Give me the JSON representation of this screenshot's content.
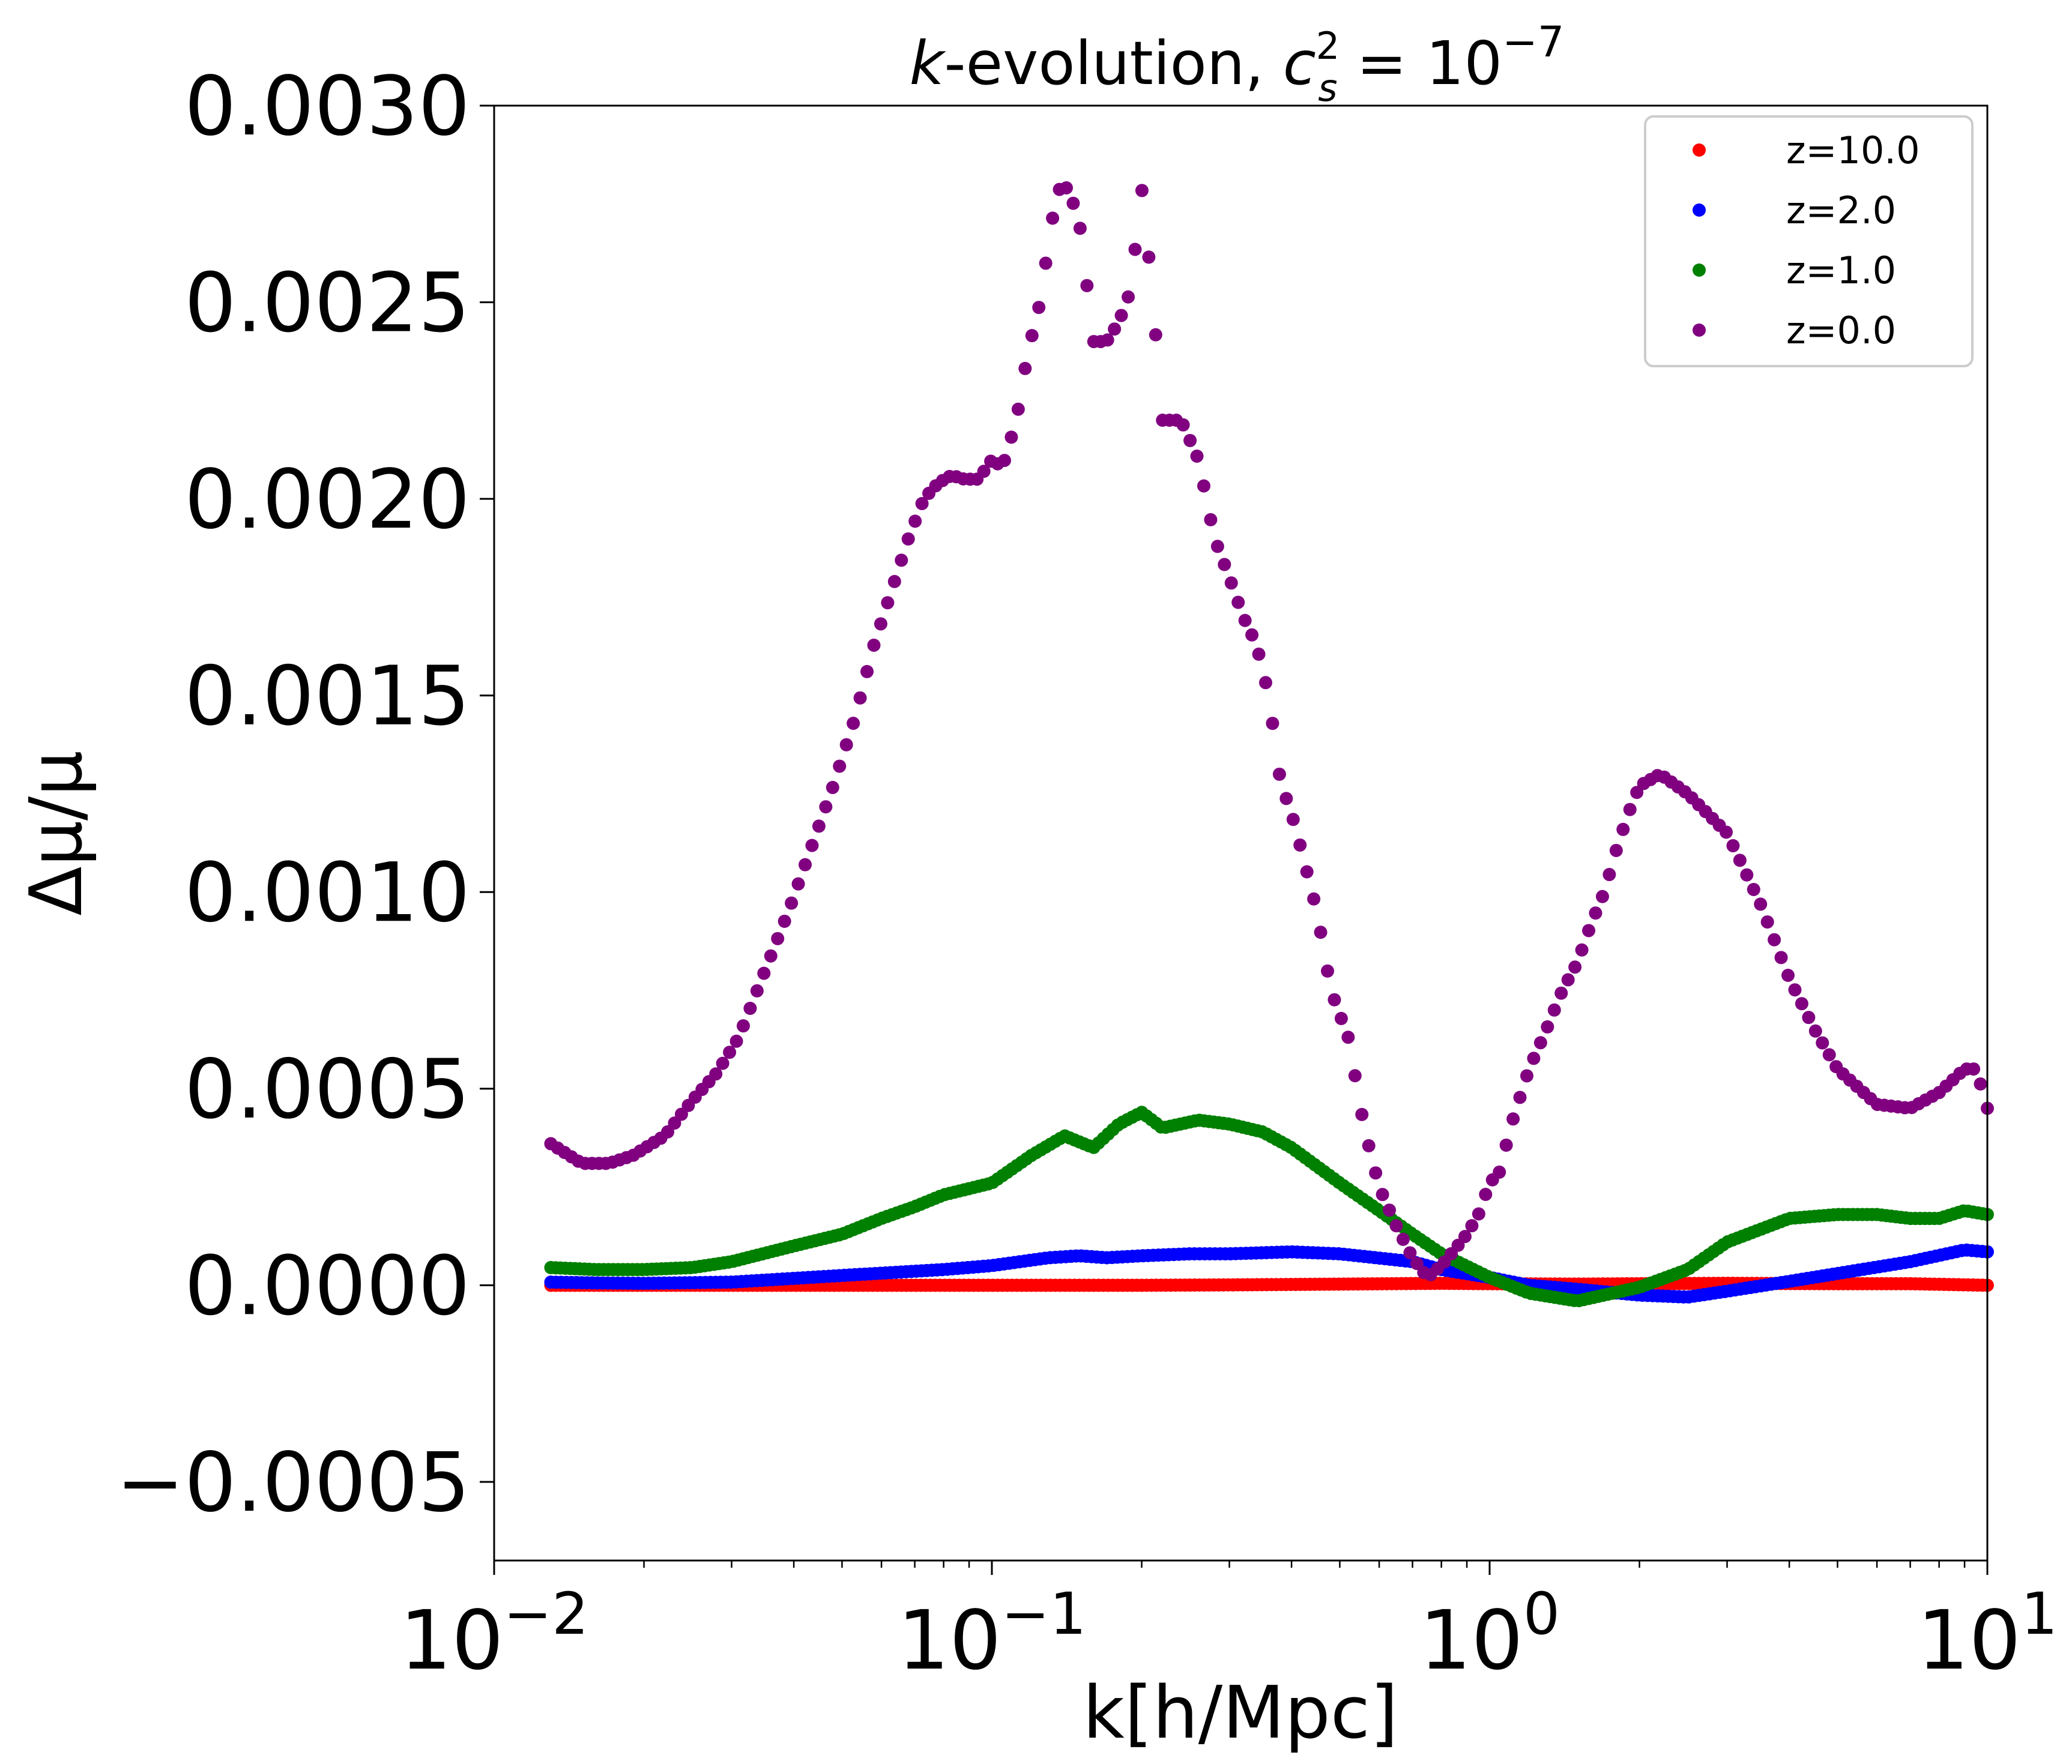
{
  "chart_data": {
    "type": "scatter",
    "title": "k-evolution, c_s^2 = 10^-7",
    "title_parts": {
      "k": "k",
      "rest": "-evolution, ",
      "c": "c",
      "sup": "2",
      "sub": "s",
      "eq": " = 10",
      "exp": "−7"
    },
    "xlabel": "k[h/Mpc]",
    "ylabel": "Δμ/μ",
    "xscale": "log",
    "xlim": [
      0.01,
      10
    ],
    "ylim": [
      -0.0007,
      0.003
    ],
    "xticks": [
      {
        "value": 0.01,
        "base": "10",
        "exp": "−2"
      },
      {
        "value": 0.1,
        "base": "10",
        "exp": "−1"
      },
      {
        "value": 1,
        "base": "10",
        "exp": "0"
      },
      {
        "value": 10,
        "base": "10",
        "exp": "1"
      }
    ],
    "yticks": [
      {
        "value": -0.0005,
        "label": "−0.0005"
      },
      {
        "value": 0.0,
        "label": "0.0000"
      },
      {
        "value": 0.0005,
        "label": "0.0005"
      },
      {
        "value": 0.001,
        "label": "0.0010"
      },
      {
        "value": 0.0015,
        "label": "0.0015"
      },
      {
        "value": 0.002,
        "label": "0.0020"
      },
      {
        "value": 0.0025,
        "label": "0.0025"
      },
      {
        "value": 0.003,
        "label": "0.0030"
      }
    ],
    "grid": false,
    "legend_position": "top-right",
    "series": [
      {
        "name": "z=10.0",
        "color": "#ff0000",
        "points": [
          [
            0.013,
            0.0
          ],
          [
            0.016,
            0.0
          ],
          [
            0.02,
            0.0
          ],
          [
            0.03,
            0.0
          ],
          [
            0.05,
            0.0
          ],
          [
            0.08,
            0.0
          ],
          [
            0.1,
            0.0
          ],
          [
            0.2,
            0.0
          ],
          [
            0.3,
            1e-06
          ],
          [
            0.5,
            3e-06
          ],
          [
            0.8,
            5e-06
          ],
          [
            1.0,
            4e-06
          ],
          [
            1.5,
            3e-06
          ],
          [
            2.0,
            4e-06
          ],
          [
            3.0,
            5e-06
          ],
          [
            5.0,
            4e-06
          ],
          [
            7.0,
            4e-06
          ],
          [
            10.0,
            0.0
          ]
        ]
      },
      {
        "name": "z=2.0",
        "color": "#0000ff",
        "points": [
          [
            0.013,
            8e-06
          ],
          [
            0.016,
            6e-06
          ],
          [
            0.02,
            5e-06
          ],
          [
            0.03,
            8e-06
          ],
          [
            0.05,
            2.5e-05
          ],
          [
            0.08,
            4e-05
          ],
          [
            0.1,
            5e-05
          ],
          [
            0.13,
            7e-05
          ],
          [
            0.15,
            7.5e-05
          ],
          [
            0.17,
            7e-05
          ],
          [
            0.2,
            7.5e-05
          ],
          [
            0.25,
            8e-05
          ],
          [
            0.3,
            8e-05
          ],
          [
            0.4,
            8.5e-05
          ],
          [
            0.5,
            8e-05
          ],
          [
            0.7,
            6e-05
          ],
          [
            0.8,
            4e-05
          ],
          [
            1.0,
            2e-05
          ],
          [
            1.2,
            0.0
          ],
          [
            1.5,
            -1e-05
          ],
          [
            2.0,
            -2.5e-05
          ],
          [
            2.5,
            -3e-05
          ],
          [
            3.0,
            -1.5e-05
          ],
          [
            4.0,
            1e-05
          ],
          [
            5.0,
            3e-05
          ],
          [
            7.0,
            6e-05
          ],
          [
            9.0,
            9e-05
          ],
          [
            10.0,
            8.5e-05
          ]
        ]
      },
      {
        "name": "z=1.0",
        "color": "#008000",
        "points": [
          [
            0.013,
            4.5e-05
          ],
          [
            0.016,
            4e-05
          ],
          [
            0.02,
            4e-05
          ],
          [
            0.025,
            4.5e-05
          ],
          [
            0.03,
            6e-05
          ],
          [
            0.04,
            0.0001
          ],
          [
            0.05,
            0.00013
          ],
          [
            0.06,
            0.00017
          ],
          [
            0.07,
            0.0002
          ],
          [
            0.08,
            0.00023
          ],
          [
            0.1,
            0.00026
          ],
          [
            0.12,
            0.00033
          ],
          [
            0.14,
            0.00038
          ],
          [
            0.16,
            0.00035
          ],
          [
            0.18,
            0.00041
          ],
          [
            0.2,
            0.00044
          ],
          [
            0.22,
            0.0004
          ],
          [
            0.26,
            0.00042
          ],
          [
            0.3,
            0.00041
          ],
          [
            0.35,
            0.00039
          ],
          [
            0.4,
            0.00035
          ],
          [
            0.5,
            0.00026
          ],
          [
            0.6,
            0.00019
          ],
          [
            0.7,
            0.00013
          ],
          [
            0.8,
            8e-05
          ],
          [
            1.0,
            2e-05
          ],
          [
            1.2,
            -2e-05
          ],
          [
            1.5,
            -4e-05
          ],
          [
            2.0,
            -5e-06
          ],
          [
            2.5,
            4e-05
          ],
          [
            3.0,
            0.00011
          ],
          [
            4.0,
            0.00017
          ],
          [
            5.0,
            0.00018
          ],
          [
            6.0,
            0.00018
          ],
          [
            7.0,
            0.00017
          ],
          [
            8.0,
            0.00017
          ],
          [
            9.0,
            0.00019
          ],
          [
            10.0,
            0.00018
          ]
        ]
      },
      {
        "name": "z=0.0",
        "color": "#800080",
        "points": [
          [
            0.013,
            0.00036
          ],
          [
            0.015,
            0.00031
          ],
          [
            0.017,
            0.00031
          ],
          [
            0.019,
            0.00033
          ],
          [
            0.022,
            0.00038
          ],
          [
            0.025,
            0.00047
          ],
          [
            0.028,
            0.00054
          ],
          [
            0.031,
            0.00063
          ],
          [
            0.035,
            0.0008
          ],
          [
            0.039,
            0.00095
          ],
          [
            0.043,
            0.0011
          ],
          [
            0.048,
            0.00127
          ],
          [
            0.053,
            0.00144
          ],
          [
            0.058,
            0.00163
          ],
          [
            0.063,
            0.00177
          ],
          [
            0.068,
            0.0019
          ],
          [
            0.073,
            0.002
          ],
          [
            0.078,
            0.00204
          ],
          [
            0.083,
            0.00206
          ],
          [
            0.088,
            0.00205
          ],
          [
            0.094,
            0.00205
          ],
          [
            0.1,
            0.0021
          ],
          [
            0.105,
            0.00208
          ],
          [
            0.112,
            0.0022
          ],
          [
            0.118,
            0.00237
          ],
          [
            0.125,
            0.0025
          ],
          [
            0.13,
            0.00265
          ],
          [
            0.135,
            0.00278
          ],
          [
            0.14,
            0.0028
          ],
          [
            0.145,
            0.00276
          ],
          [
            0.15,
            0.0027
          ],
          [
            0.155,
            0.00255
          ],
          [
            0.16,
            0.0024
          ],
          [
            0.17,
            0.0024
          ],
          [
            0.18,
            0.00245
          ],
          [
            0.19,
            0.00253
          ],
          [
            0.2,
            0.00279
          ],
          [
            0.21,
            0.00253
          ],
          [
            0.22,
            0.0022
          ],
          [
            0.24,
            0.0022
          ],
          [
            0.26,
            0.0021
          ],
          [
            0.28,
            0.0019
          ],
          [
            0.3,
            0.0018
          ],
          [
            0.32,
            0.0017
          ],
          [
            0.34,
            0.00163
          ],
          [
            0.36,
            0.0015
          ],
          [
            0.38,
            0.00128
          ],
          [
            0.4,
            0.0012
          ],
          [
            0.42,
            0.0011
          ],
          [
            0.45,
            0.00095
          ],
          [
            0.48,
            0.00075
          ],
          [
            0.52,
            0.00063
          ],
          [
            0.56,
            0.0004
          ],
          [
            0.6,
            0.00025
          ],
          [
            0.65,
            0.00015
          ],
          [
            0.7,
            7e-05
          ],
          [
            0.75,
            2e-05
          ],
          [
            0.8,
            5e-05
          ],
          [
            0.85,
            9e-05
          ],
          [
            0.9,
            0.00013
          ],
          [
            0.95,
            0.00018
          ],
          [
            1.0,
            0.00026
          ],
          [
            1.05,
            0.00029
          ],
          [
            1.1,
            0.0004
          ],
          [
            1.2,
            0.00055
          ],
          [
            1.3,
            0.00065
          ],
          [
            1.4,
            0.00075
          ],
          [
            1.5,
            0.00082
          ],
          [
            1.6,
            0.00092
          ],
          [
            1.7,
            0.001
          ],
          [
            1.8,
            0.00111
          ],
          [
            1.9,
            0.0012
          ],
          [
            2.0,
            0.00127
          ],
          [
            2.2,
            0.0013
          ],
          [
            2.5,
            0.00125
          ],
          [
            3.0,
            0.00115
          ],
          [
            3.5,
            0.00097
          ],
          [
            4.0,
            0.00078
          ],
          [
            4.5,
            0.00065
          ],
          [
            5.0,
            0.00055
          ],
          [
            6.0,
            0.00046
          ],
          [
            7.0,
            0.00045
          ],
          [
            8.0,
            0.00049
          ],
          [
            9.0,
            0.00055
          ],
          [
            9.5,
            0.00055
          ],
          [
            10.0,
            0.00045
          ]
        ]
      }
    ]
  }
}
